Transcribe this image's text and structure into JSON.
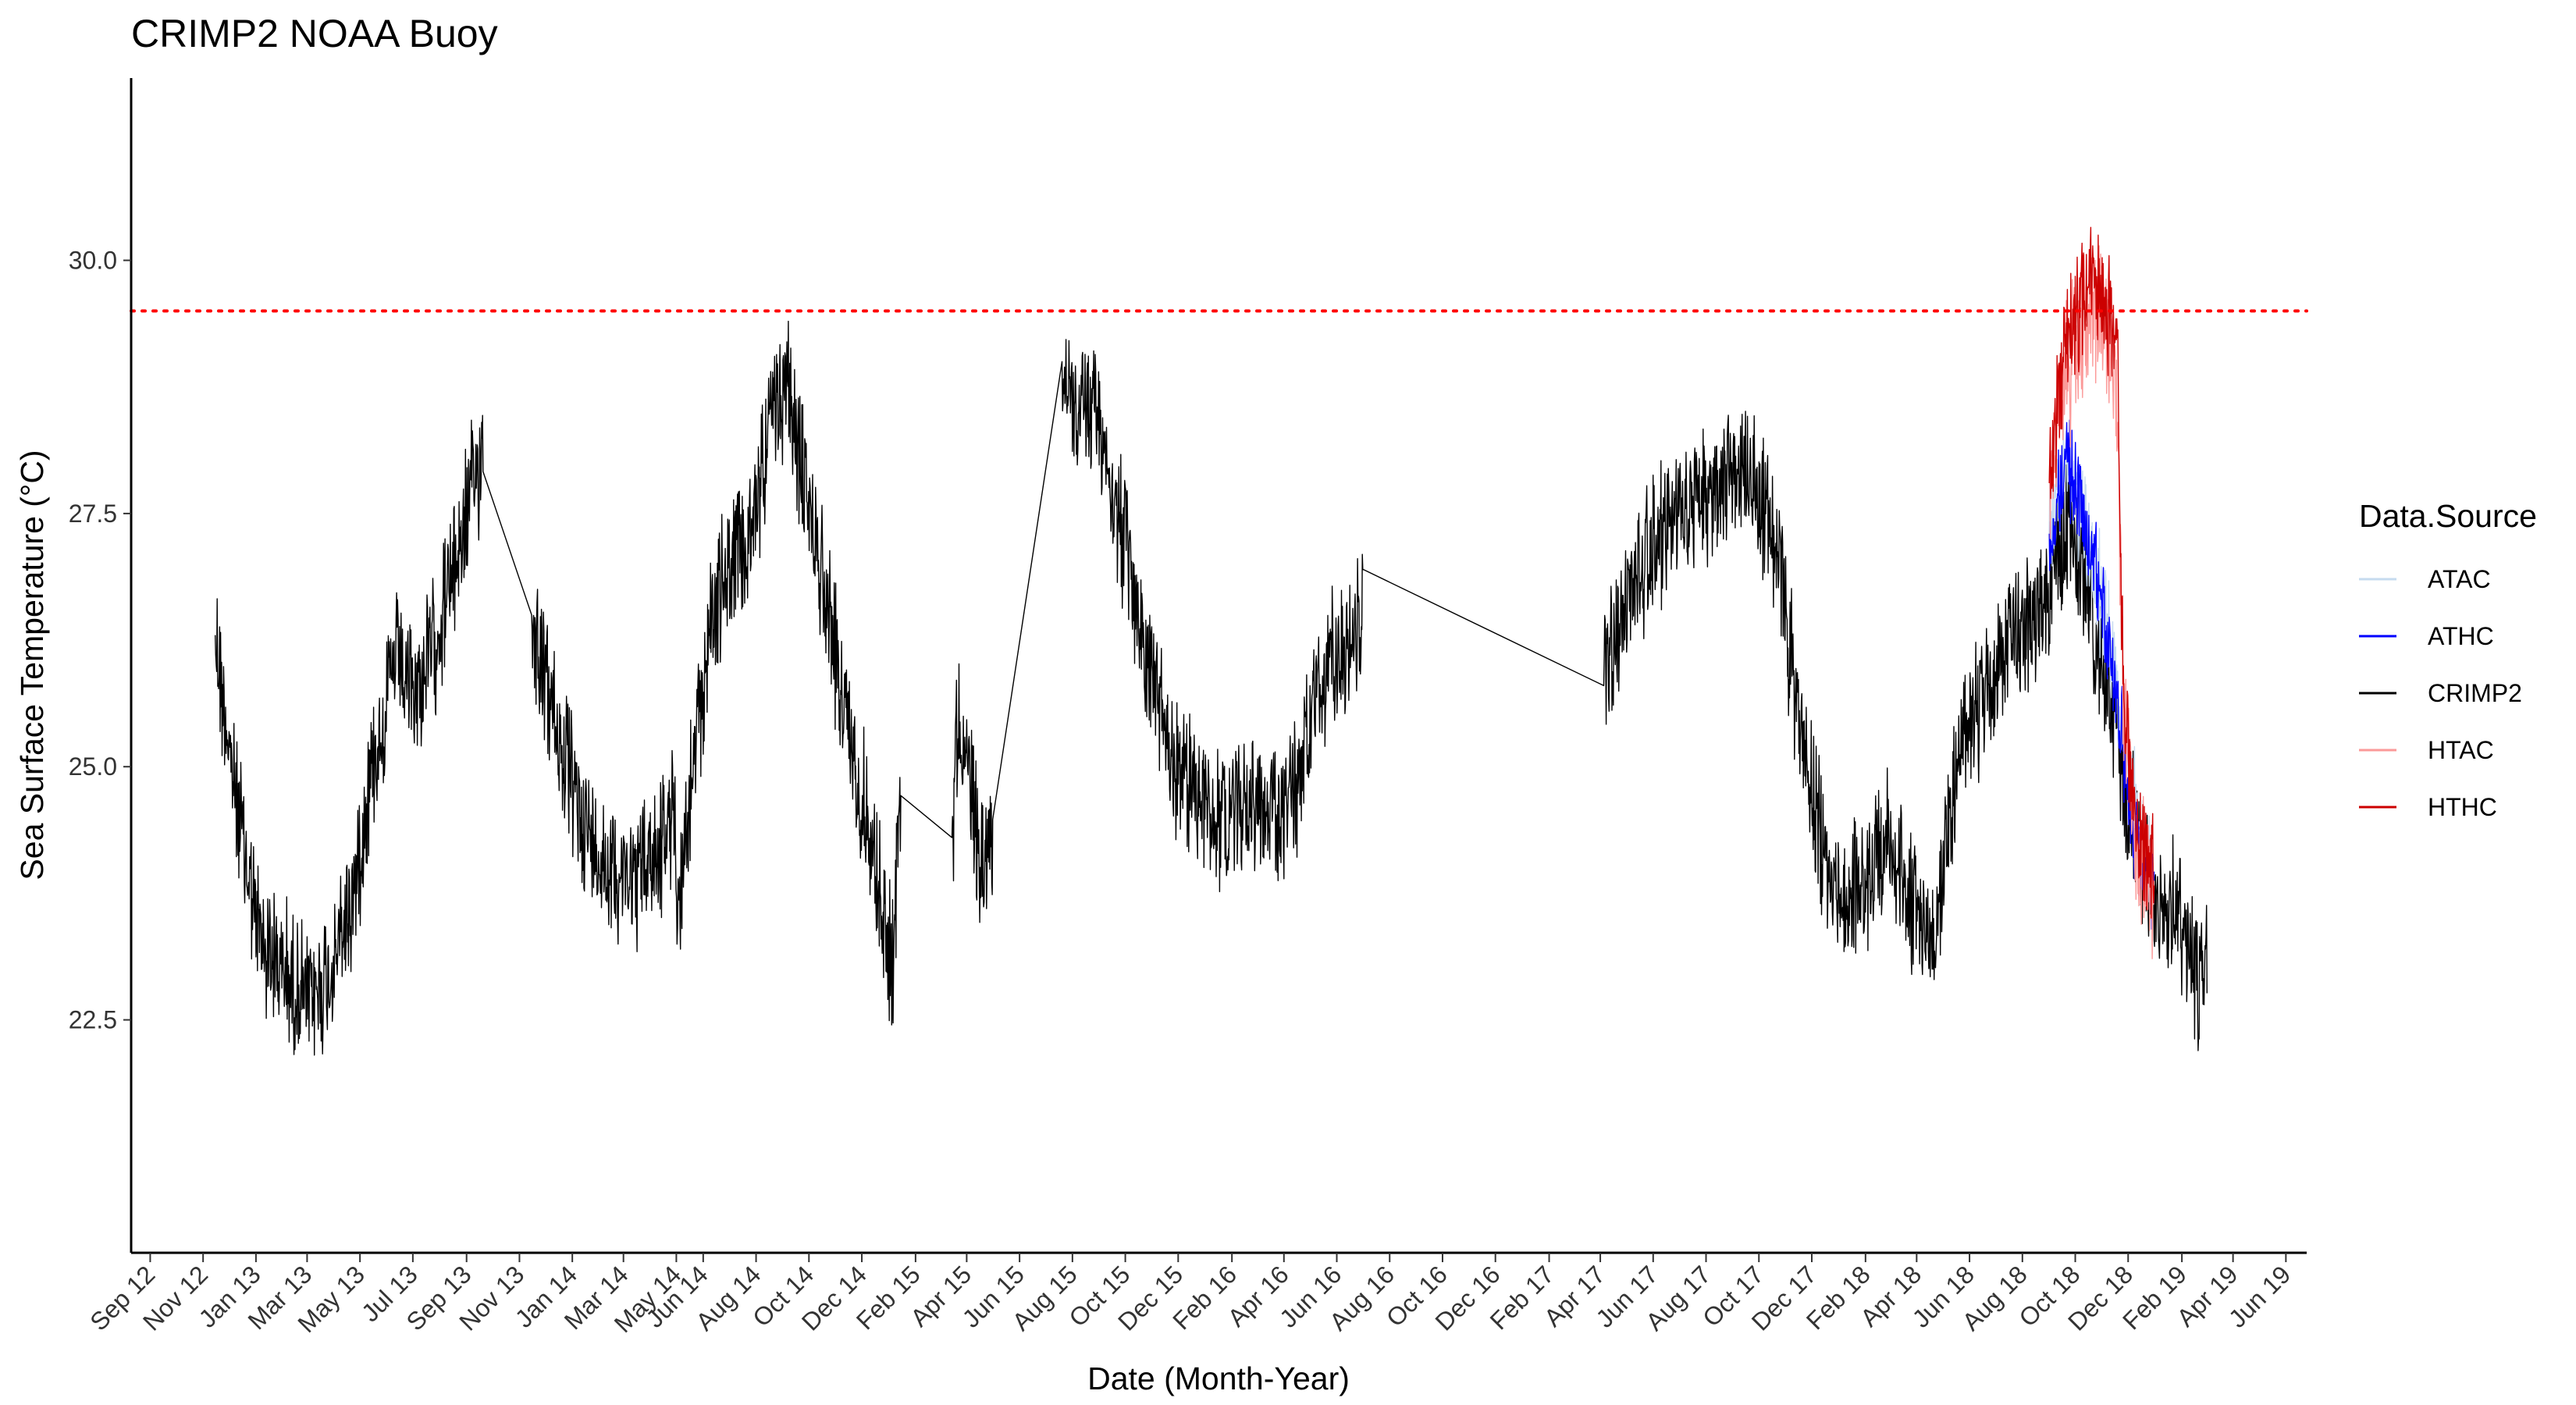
{
  "chart_data": {
    "type": "line",
    "title": "CRIMP2 NOAA Buoy",
    "xlabel": "Date (Month-Year)",
    "ylabel": "Sea Surface Temperature (°C)",
    "x_range": [
      "2012-08-10",
      "2019-06-25"
    ],
    "ylim": [
      20.2,
      31.8
    ],
    "grid": false,
    "legend_position": "right",
    "legend_title": "Data.Source",
    "y_ticks": [
      22.5,
      25.0,
      27.5,
      30.0
    ],
    "y_tick_labels": [
      "22.5",
      "25.0",
      "27.5",
      "30.0"
    ],
    "x_ticks": [
      "2012-09-01",
      "2012-11-01",
      "2013-01-01",
      "2013-03-01",
      "2013-05-01",
      "2013-07-01",
      "2013-09-01",
      "2013-11-01",
      "2014-01-01",
      "2014-03-01",
      "2014-05-01",
      "2014-06-01",
      "2014-08-01",
      "2014-10-01",
      "2014-12-01",
      "2015-02-01",
      "2015-04-01",
      "2015-06-01",
      "2015-08-01",
      "2015-10-01",
      "2015-12-01",
      "2016-02-01",
      "2016-04-01",
      "2016-06-01",
      "2016-08-01",
      "2016-10-01",
      "2016-12-01",
      "2017-02-01",
      "2017-04-01",
      "2017-06-01",
      "2017-08-01",
      "2017-10-01",
      "2017-12-01",
      "2018-02-01",
      "2018-04-01",
      "2018-06-01",
      "2018-08-01",
      "2018-10-01",
      "2018-12-01",
      "2019-02-01",
      "2019-04-01",
      "2019-06-01"
    ],
    "x_tick_labels": [
      "Sep 12",
      "Nov 12",
      "Jan 13",
      "Mar 13",
      "May 13",
      "Jul 13",
      "Sep 13",
      "Nov 13",
      "Jan 14",
      "Mar 14",
      "May 14",
      "Jun 14",
      "Aug 14",
      "Oct 14",
      "Dec 14",
      "Feb 15",
      "Apr 15",
      "Jun 15",
      "Aug 15",
      "Oct 15",
      "Dec 15",
      "Feb 16",
      "Apr 16",
      "Jun 16",
      "Aug 16",
      "Oct 16",
      "Dec 16",
      "Feb 17",
      "Apr 17",
      "Jun 17",
      "Aug 17",
      "Oct 17",
      "Dec 17",
      "Feb 18",
      "Apr 18",
      "Jun 18",
      "Aug 18",
      "Oct 18",
      "Dec 18",
      "Feb 19",
      "Apr 19",
      "Jun 19"
    ],
    "reference_line": {
      "y": 29.5,
      "color": "#ff0000",
      "style": "dotted"
    },
    "series": [
      {
        "name": "CRIMP2",
        "color": "#000000",
        "noise": 0.7,
        "points": [
          [
            "2012-11-15",
            26.3
          ],
          [
            "2012-12-10",
            24.6
          ],
          [
            "2013-01-05",
            23.3
          ],
          [
            "2013-02-01",
            23.0
          ],
          [
            "2013-03-01",
            22.7
          ],
          [
            "2013-03-25",
            22.9
          ],
          [
            "2013-04-20",
            23.6
          ],
          [
            "2013-05-15",
            25.0
          ],
          [
            "2013-06-10",
            26.0
          ],
          [
            "2013-07-05",
            25.7
          ],
          [
            "2013-08-01",
            26.4
          ],
          [
            "2013-08-25",
            27.2
          ],
          [
            "2013-09-10",
            27.8
          ],
          [
            "2013-09-20",
            28.2
          ],
          [
            "2013-11-15",
            26.5
          ],
          [
            "2013-12-10",
            25.5
          ],
          [
            "2014-01-01",
            24.8
          ],
          [
            "2014-01-25",
            24.2
          ],
          [
            "2014-02-20",
            24.0
          ],
          [
            "2014-03-15",
            23.9
          ],
          [
            "2014-04-10",
            24.2
          ],
          [
            "2014-04-30",
            24.5
          ],
          [
            "2014-05-03",
            23.6
          ],
          [
            "2014-06-10",
            26.5
          ],
          [
            "2014-07-05",
            27.0
          ],
          [
            "2014-07-25",
            27.2
          ],
          [
            "2014-08-15",
            28.3
          ],
          [
            "2014-09-05",
            28.8
          ],
          [
            "2014-09-25",
            27.8
          ],
          [
            "2014-10-20",
            26.8
          ],
          [
            "2014-11-15",
            25.3
          ],
          [
            "2014-12-05",
            24.6
          ],
          [
            "2014-12-25",
            23.6
          ],
          [
            "2015-01-05",
            23.0
          ],
          [
            "2015-01-15",
            24.9
          ],
          [
            "2015-03-15",
            24.3
          ],
          [
            "2015-03-22",
            25.5
          ],
          [
            "2015-04-20",
            24.0
          ],
          [
            "2015-05-01",
            24.3
          ],
          [
            "2015-07-20",
            29.0
          ],
          [
            "2015-08-05",
            28.4
          ],
          [
            "2015-08-25",
            28.6
          ],
          [
            "2015-09-15",
            27.8
          ],
          [
            "2015-10-10",
            26.7
          ],
          [
            "2015-11-01",
            25.8
          ],
          [
            "2015-11-25",
            25.0
          ],
          [
            "2015-12-20",
            24.8
          ],
          [
            "2016-01-15",
            24.5
          ],
          [
            "2016-02-10",
            24.6
          ],
          [
            "2016-03-10",
            24.7
          ],
          [
            "2016-04-01",
            24.4
          ],
          [
            "2016-04-20",
            25.0
          ],
          [
            "2016-05-10",
            25.6
          ],
          [
            "2016-05-30",
            26.1
          ],
          [
            "2016-06-20",
            26.3
          ],
          [
            "2016-07-01",
            26.5
          ],
          [
            "2017-04-05",
            25.8
          ],
          [
            "2017-04-20",
            26.3
          ],
          [
            "2017-05-15",
            27.0
          ],
          [
            "2017-06-10",
            27.3
          ],
          [
            "2017-07-05",
            27.5
          ],
          [
            "2017-08-01",
            27.6
          ],
          [
            "2017-08-25",
            27.9
          ],
          [
            "2017-09-15",
            28.0
          ],
          [
            "2017-10-05",
            27.6
          ],
          [
            "2017-10-25",
            26.9
          ],
          [
            "2017-11-15",
            25.6
          ],
          [
            "2017-12-10",
            24.3
          ],
          [
            "2018-01-05",
            23.6
          ],
          [
            "2018-02-01",
            23.8
          ],
          [
            "2018-02-25",
            24.2
          ],
          [
            "2018-03-15",
            24.0
          ],
          [
            "2018-04-01",
            23.5
          ],
          [
            "2018-04-20",
            23.3
          ],
          [
            "2018-05-10",
            24.6
          ],
          [
            "2018-06-01",
            25.3
          ],
          [
            "2018-06-25",
            25.8
          ],
          [
            "2018-07-20",
            26.3
          ],
          [
            "2018-08-15",
            26.5
          ],
          [
            "2018-09-05",
            27.0
          ],
          [
            "2018-09-25",
            27.3
          ],
          [
            "2018-10-15",
            26.7
          ],
          [
            "2018-11-05",
            25.8
          ],
          [
            "2018-11-25",
            24.9
          ],
          [
            "2018-12-15",
            24.0
          ],
          [
            "2019-01-05",
            23.5
          ],
          [
            "2019-01-25",
            23.6
          ],
          [
            "2019-02-10",
            23.2
          ],
          [
            "2019-02-22",
            22.8
          ],
          [
            "2019-03-02",
            23.4
          ]
        ]
      },
      {
        "name": "ATAC",
        "color": "#c6dbef",
        "noise": 0.6,
        "points": [
          [
            "2018-09-01",
            27.3
          ],
          [
            "2018-09-20",
            27.9
          ],
          [
            "2018-10-10",
            27.5
          ],
          [
            "2018-10-30",
            26.7
          ],
          [
            "2018-11-20",
            25.6
          ],
          [
            "2018-12-10",
            24.5
          ],
          [
            "2018-12-31",
            23.8
          ]
        ]
      },
      {
        "name": "ATHC",
        "color": "#0000ff",
        "noise": 0.5,
        "points": [
          [
            "2018-09-01",
            27.3
          ],
          [
            "2018-09-20",
            28.0
          ],
          [
            "2018-10-10",
            27.6
          ],
          [
            "2018-10-30",
            26.7
          ],
          [
            "2018-11-20",
            25.5
          ],
          [
            "2018-12-10",
            24.2
          ],
          [
            "2018-12-31",
            23.8
          ]
        ]
      },
      {
        "name": "HTAC",
        "color": "#fb9a99",
        "noise": 0.7,
        "points": [
          [
            "2018-09-01",
            27.8
          ],
          [
            "2018-09-15",
            28.6
          ],
          [
            "2018-10-01",
            29.2
          ],
          [
            "2018-10-20",
            29.5
          ],
          [
            "2018-11-05",
            29.3
          ],
          [
            "2018-11-18",
            28.7
          ],
          [
            "2018-11-25",
            25.8
          ],
          [
            "2018-12-10",
            24.3
          ],
          [
            "2018-12-31",
            23.8
          ]
        ]
      },
      {
        "name": "HTHC",
        "color": "#cc0000",
        "noise": 0.6,
        "points": [
          [
            "2018-09-01",
            27.8
          ],
          [
            "2018-09-15",
            28.9
          ],
          [
            "2018-10-01",
            29.5
          ],
          [
            "2018-10-20",
            29.7
          ],
          [
            "2018-11-05",
            29.6
          ],
          [
            "2018-11-18",
            29.2
          ],
          [
            "2018-11-25",
            25.8
          ],
          [
            "2018-12-10",
            24.4
          ],
          [
            "2018-12-31",
            23.9
          ]
        ]
      }
    ]
  }
}
